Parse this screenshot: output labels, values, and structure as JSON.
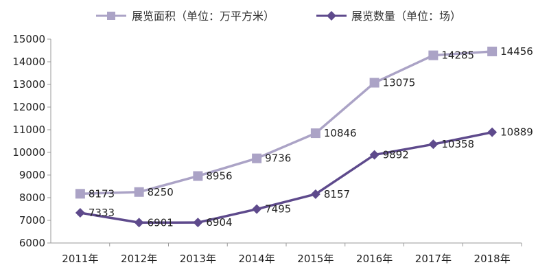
{
  "chart_data": {
    "type": "line",
    "categories": [
      "2011年",
      "2012年",
      "2013年",
      "2014年",
      "2015年",
      "2016年",
      "2017年",
      "2018年"
    ],
    "series": [
      {
        "name": "展览面积（单位：万平方米）",
        "values": [
          8173,
          8250,
          8956,
          9736,
          10846,
          13075,
          14285,
          14456
        ],
        "labels": [
          "8173",
          "8250",
          "8956",
          "9736",
          "10846",
          "13075",
          "14285",
          "14456"
        ],
        "color": "#aba3c6",
        "marker": "square"
      },
      {
        "name": "展览数量（单位：场）",
        "values": [
          7333,
          6901,
          6904,
          7495,
          8157,
          9892,
          10358,
          10889
        ],
        "labels": [
          "7333",
          "6901",
          "6904",
          "7495",
          "8157",
          "9892",
          "10358",
          "10889"
        ],
        "color": "#5e4a8c",
        "marker": "diamond"
      }
    ],
    "yticks": [
      "6000",
      "7000",
      "8000",
      "9000",
      "10000",
      "11000",
      "12000",
      "13000",
      "14000",
      "15000"
    ],
    "ylim": [
      6000,
      15000
    ],
    "grid": false,
    "legend_position": "top"
  }
}
